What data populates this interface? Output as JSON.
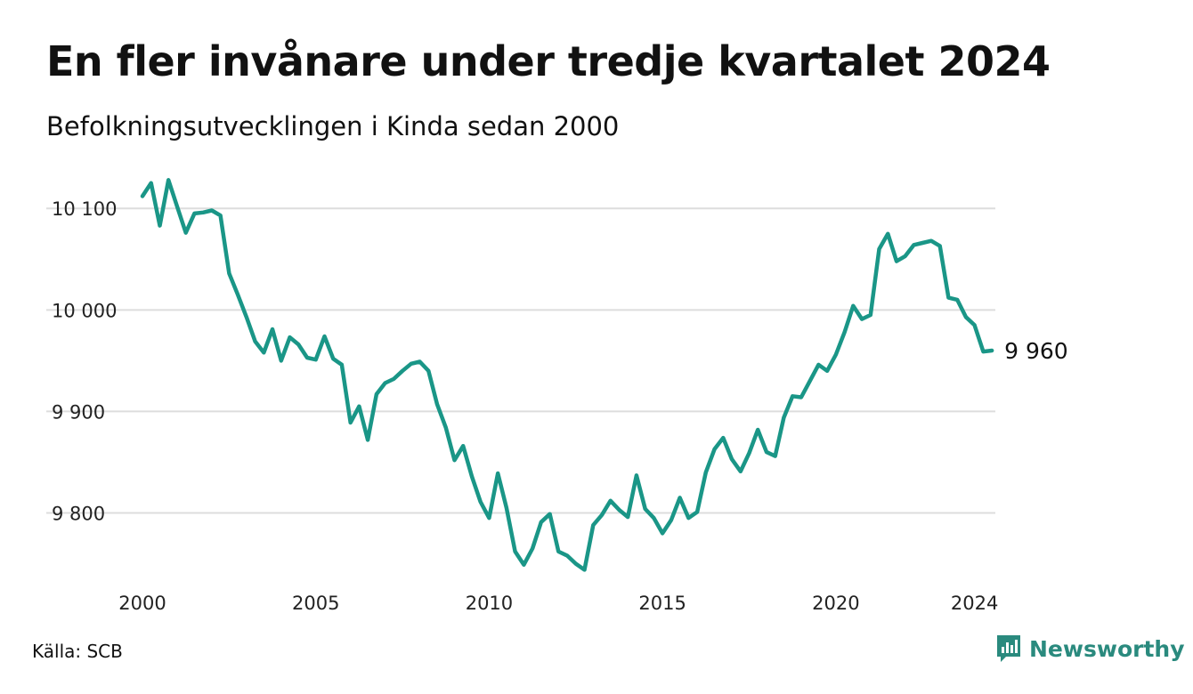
{
  "title": "En fler invånare under tredje kvartalet 2024",
  "subtitle": "Befolkningsutvecklingen i Kinda sedan 2000",
  "source": "Källa: SCB",
  "brand": {
    "name": "Newsworthy",
    "icon": "newsworthy-logo-icon",
    "color": "#2a8a7e"
  },
  "colors": {
    "line": "#1a9687",
    "grid": "#dddddd",
    "text": "#111111"
  },
  "chart_data": {
    "type": "line",
    "title": "En fler invånare under tredje kvartalet 2024",
    "subtitle": "Befolkningsutvecklingen i Kinda sedan 2000",
    "xlabel": "",
    "ylabel": "",
    "xlim": [
      2000,
      2024.6
    ],
    "ylim": [
      9740,
      10130
    ],
    "x_ticks": [
      2000,
      2005,
      2010,
      2015,
      2020,
      2024
    ],
    "x_tick_labels": [
      "2000",
      "2005",
      "2010",
      "2015",
      "2020",
      "2024"
    ],
    "y_ticks": [
      9800,
      9900,
      10000,
      10100
    ],
    "y_tick_labels": [
      "9 800",
      "9 900",
      "10 000",
      "10 100"
    ],
    "grid": "horizontal",
    "legend": "none",
    "end_label": "9 960",
    "series": [
      {
        "color": "#1a9687",
        "x": [
          2000.0,
          2000.25,
          2000.5,
          2000.75,
          2001.0,
          2001.25,
          2001.5,
          2001.75,
          2002.0,
          2002.25,
          2002.5,
          2002.75,
          2003.0,
          2003.25,
          2003.5,
          2003.75,
          2004.0,
          2004.25,
          2004.5,
          2004.75,
          2005.0,
          2005.25,
          2005.5,
          2005.75,
          2006.0,
          2006.25,
          2006.5,
          2006.75,
          2007.0,
          2007.25,
          2007.5,
          2007.75,
          2008.0,
          2008.25,
          2008.5,
          2008.75,
          2009.0,
          2009.25,
          2009.5,
          2009.75,
          2010.0,
          2010.25,
          2010.5,
          2010.75,
          2011.0,
          2011.25,
          2011.5,
          2011.75,
          2012.0,
          2012.25,
          2012.5,
          2012.75,
          2013.0,
          2013.25,
          2013.5,
          2013.75,
          2014.0,
          2014.25,
          2014.5,
          2014.75,
          2015.0,
          2015.25,
          2015.5,
          2015.75,
          2016.0,
          2016.25,
          2016.5,
          2016.75,
          2017.0,
          2017.25,
          2017.5,
          2017.75,
          2018.0,
          2018.25,
          2018.5,
          2018.75,
          2019.0,
          2019.25,
          2019.5,
          2019.75,
          2020.0,
          2020.25,
          2020.5,
          2020.75,
          2021.0,
          2021.25,
          2021.5,
          2021.75,
          2022.0,
          2022.25,
          2022.5,
          2022.75,
          2023.0,
          2023.25,
          2023.5,
          2023.75,
          2024.0,
          2024.25,
          2024.5
        ],
        "values": [
          10112,
          10125,
          10083,
          10128,
          10102,
          10076,
          10095,
          10096,
          10098,
          10093,
          10036,
          10015,
          9993,
          9969,
          9958,
          9981,
          9950,
          9973,
          9966,
          9953,
          9951,
          9974,
          9952,
          9946,
          9889,
          9905,
          9872,
          9917,
          9928,
          9932,
          9940,
          9947,
          9949,
          9940,
          9907,
          9884,
          9852,
          9866,
          9836,
          9811,
          9795,
          9839,
          9805,
          9762,
          9749,
          9765,
          9791,
          9799,
          9762,
          9758,
          9750,
          9744,
          9788,
          9798,
          9812,
          9803,
          9796,
          9837,
          9804,
          9795,
          9780,
          9793,
          9815,
          9795,
          9801,
          9840,
          9863,
          9874,
          9853,
          9841,
          9859,
          9882,
          9860,
          9856,
          9894,
          9915,
          9914,
          9930,
          9946,
          9940,
          9956,
          9978,
          10004,
          9991,
          9995,
          10060,
          10075,
          10048,
          10053,
          10064,
          10066,
          10068,
          10063,
          10012,
          10010,
          9993,
          9985,
          9959,
          9960
        ]
      }
    ]
  }
}
